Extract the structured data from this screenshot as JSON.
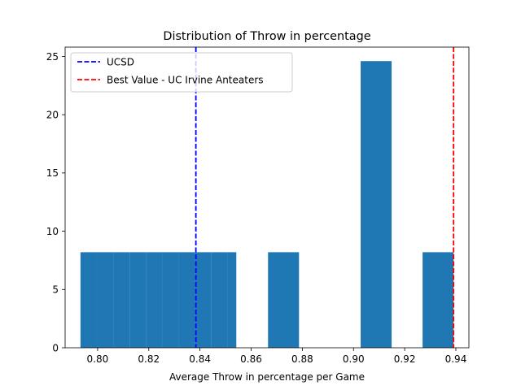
{
  "chart_data": {
    "type": "bar",
    "title": "Distribution of Throw in percentage",
    "xlabel": "Average Throw in percentage per Game",
    "ylabel": "",
    "xlim": [
      0.7873,
      0.9451
    ],
    "ylim": [
      0,
      25.8
    ],
    "x_ticks": [
      0.8,
      0.82,
      0.84,
      0.86,
      0.88,
      0.9,
      0.92,
      0.94
    ],
    "x_tick_labels": [
      "0.80",
      "0.82",
      "0.84",
      "0.86",
      "0.88",
      "0.90",
      "0.92",
      "0.94"
    ],
    "y_ticks": [
      0,
      5,
      10,
      15,
      20,
      25
    ],
    "y_tick_labels": [
      "0",
      "5",
      "10",
      "15",
      "20",
      "25"
    ],
    "bins": [
      {
        "x0": 0.7933,
        "x1": 0.7997,
        "value": 8.2
      },
      {
        "x0": 0.7997,
        "x1": 0.8061,
        "value": 8.2
      },
      {
        "x0": 0.8061,
        "x1": 0.8125,
        "value": 8.2
      },
      {
        "x0": 0.8125,
        "x1": 0.8189,
        "value": 8.2
      },
      {
        "x0": 0.8189,
        "x1": 0.8253,
        "value": 8.2
      },
      {
        "x0": 0.8253,
        "x1": 0.8317,
        "value": 8.2
      },
      {
        "x0": 0.8317,
        "x1": 0.8381,
        "value": 8.2
      },
      {
        "x0": 0.8381,
        "x1": 0.8445,
        "value": 8.2
      },
      {
        "x0": 0.8445,
        "x1": 0.8509,
        "value": 8.2
      },
      {
        "x0": 0.8509,
        "x1": 0.8542,
        "value": 8.2
      },
      {
        "x0": 0.8666,
        "x1": 0.8787,
        "value": 8.2
      },
      {
        "x0": 0.9028,
        "x1": 0.9149,
        "value": 24.6
      },
      {
        "x0": 0.927,
        "x1": 0.9391,
        "value": 8.2
      }
    ],
    "reference_lines": [
      {
        "label": "UCSD",
        "x": 0.8384,
        "color": "#0000ff",
        "style": "dashed"
      },
      {
        "label": "Best Value - UC Irvine Anteaters",
        "x": 0.9391,
        "color": "#ff0000",
        "style": "dashed"
      }
    ],
    "bar_color": "#1f77b4",
    "legend": "top-left",
    "grid": false
  }
}
